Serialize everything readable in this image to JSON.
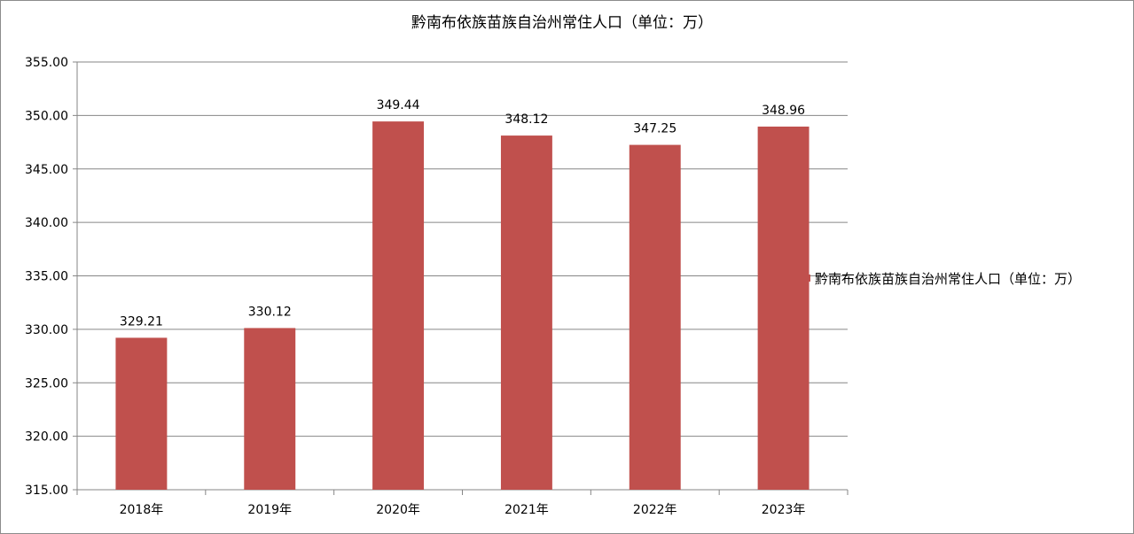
{
  "colors": {
    "bar": "#c0504d",
    "grid": "#868686",
    "axis": "#868686",
    "background": "#ffffff",
    "border": "#8c8c8c"
  },
  "chart_data": {
    "type": "bar",
    "title": "黔南布依族苗族自治州常住人口（单位：万）",
    "xlabel": "",
    "ylabel": "",
    "categories": [
      "2018年",
      "2019年",
      "2020年",
      "2021年",
      "2022年",
      "2023年"
    ],
    "series": [
      {
        "name": "黔南布依族苗族自治州常住人口（单位：万）",
        "values": [
          329.21,
          330.12,
          349.44,
          348.12,
          347.25,
          348.96
        ],
        "value_labels": [
          "329.21",
          "330.12",
          "349.44",
          "348.12",
          "347.25",
          "348.96"
        ]
      }
    ],
    "ylim": [
      315,
      355
    ],
    "y_ticks": [
      "315.00",
      "320.00",
      "325.00",
      "330.00",
      "335.00",
      "340.00",
      "345.00",
      "350.00",
      "355.00"
    ],
    "grid": true,
    "legend_position": "right"
  }
}
